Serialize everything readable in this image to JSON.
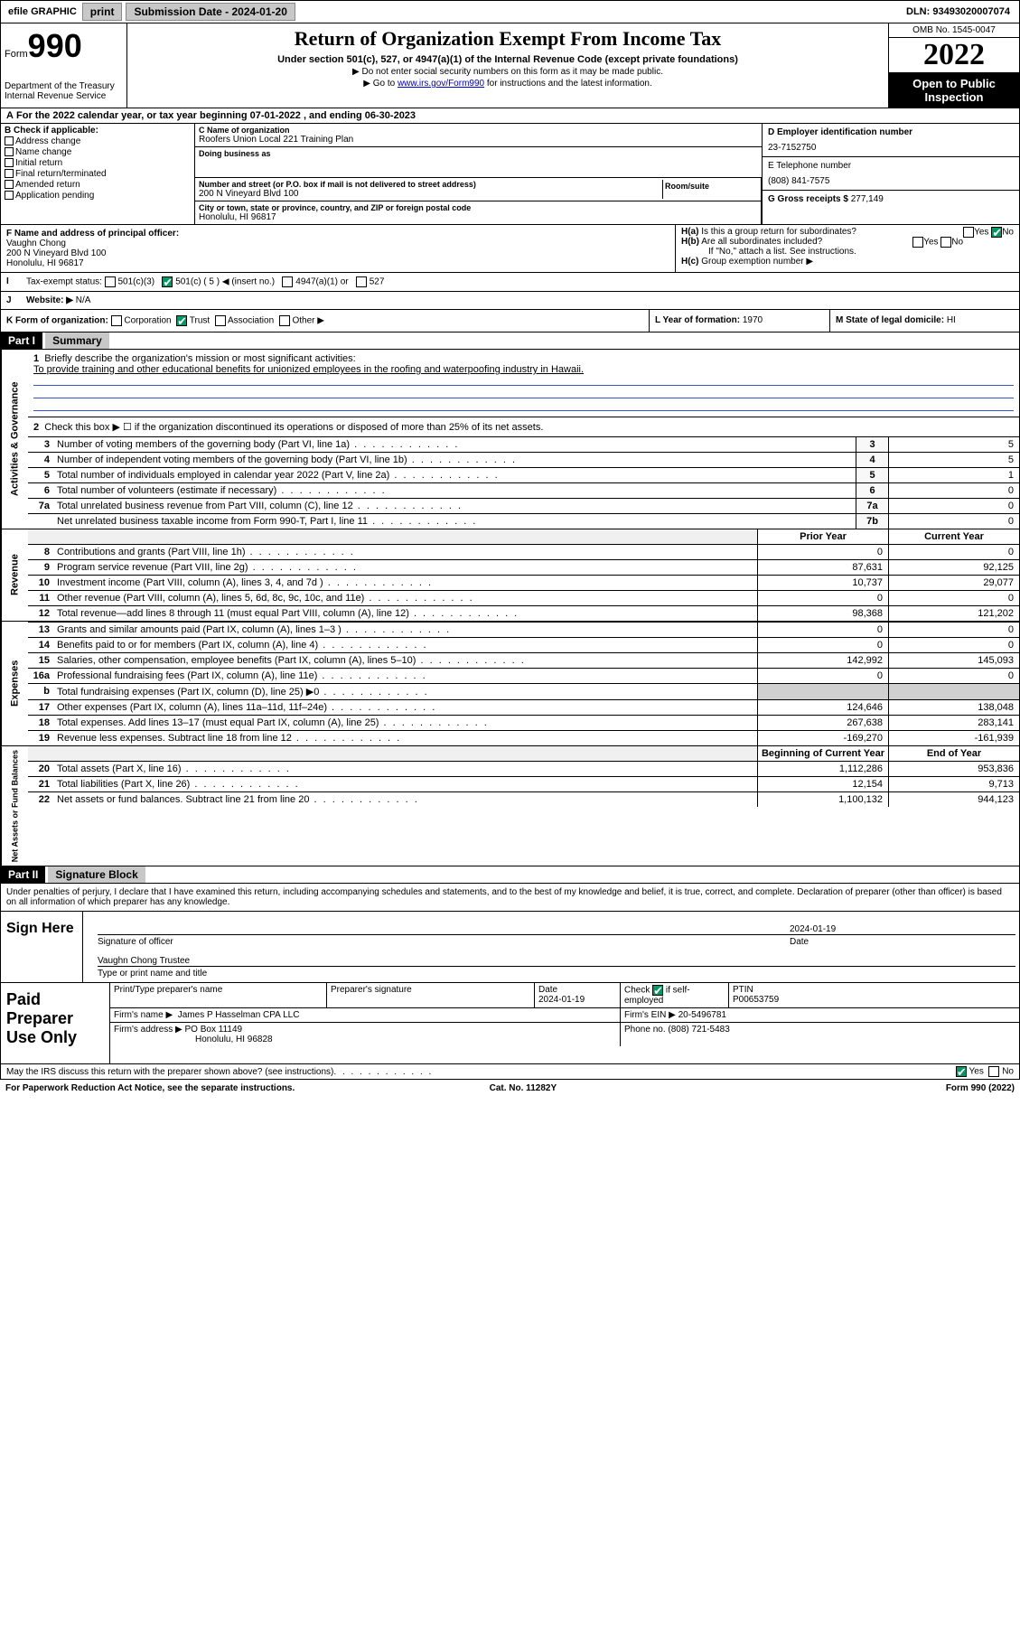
{
  "topbar": {
    "efile": "efile GRAPHIC",
    "print": "print",
    "submission_label": "Submission Date - 2024-01-20",
    "dln": "DLN: 93493020007074"
  },
  "header": {
    "form_prefix": "Form",
    "form_number": "990",
    "dept": "Department of the Treasury",
    "irs": "Internal Revenue Service",
    "title": "Return of Organization Exempt From Income Tax",
    "subtitle": "Under section 501(c), 527, or 4947(a)(1) of the Internal Revenue Code (except private foundations)",
    "note1": "▶ Do not enter social security numbers on this form as it may be made public.",
    "note2_pre": "▶ Go to ",
    "note2_link": "www.irs.gov/Form990",
    "note2_post": " for instructions and the latest information.",
    "omb": "OMB No. 1545-0047",
    "year": "2022",
    "open_public": "Open to Public Inspection"
  },
  "section_a": "For the 2022 calendar year, or tax year beginning 07-01-2022    , and ending 06-30-2023",
  "section_b": {
    "label": "B Check if applicable:",
    "items": [
      "Address change",
      "Name change",
      "Initial return",
      "Final return/terminated",
      "Amended return",
      "Application pending"
    ]
  },
  "section_c": {
    "name_lbl": "C Name of organization",
    "name": "Roofers Union Local 221 Training Plan",
    "dba_lbl": "Doing business as",
    "dba": "",
    "addr_lbl": "Number and street (or P.O. box if mail is not delivered to street address)",
    "room_lbl": "Room/suite",
    "addr": "200 N Vineyard Blvd 100",
    "city_lbl": "City or town, state or province, country, and ZIP or foreign postal code",
    "city": "Honolulu, HI  96817"
  },
  "section_d": {
    "ein_lbl": "D Employer identification number",
    "ein": "23-7152750",
    "phone_lbl": "E Telephone number",
    "phone": "(808) 841-7575",
    "gross_lbl": "G Gross receipts $",
    "gross": "277,149"
  },
  "section_f": {
    "lbl": "F Name and address of principal officer:",
    "name": "Vaughn Chong",
    "addr1": "200 N Vineyard Blvd 100",
    "addr2": "Honolulu, HI  96817"
  },
  "section_h": {
    "ha": "Is this a group return for subordinates?",
    "hb": "Are all subordinates included?",
    "hb_note": "If \"No,\" attach a list. See instructions.",
    "hc": "Group exemption number ▶",
    "yes": "Yes",
    "no": "No"
  },
  "section_i": {
    "lbl": "Tax-exempt status:",
    "opts": [
      "501(c)(3)",
      "501(c) ( 5 ) ◀ (insert no.)",
      "4947(a)(1) or",
      "527"
    ]
  },
  "section_j": {
    "lbl": "Website: ▶",
    "val": "N/A"
  },
  "section_k": {
    "lbl": "K Form of organization:",
    "opts": [
      "Corporation",
      "Trust",
      "Association",
      "Other ▶"
    ]
  },
  "section_l": {
    "lbl": "L Year of formation:",
    "val": "1970"
  },
  "section_m": {
    "lbl": "M State of legal domicile:",
    "val": "HI"
  },
  "part1": {
    "header": "Part I",
    "title": "Summary"
  },
  "summary": {
    "line1_lbl": "Briefly describe the organization's mission or most significant activities:",
    "line1_val": "To provide training and other educational benefits for unionized employees in the roofing and waterpoofing industry in Hawaii.",
    "line2": "Check this box ▶ ☐  if the organization discontinued its operations or disposed of more than 25% of its net assets.",
    "rows_single": [
      {
        "n": "3",
        "desc": "Number of voting members of the governing body (Part VI, line 1a)",
        "box": "3",
        "val": "5"
      },
      {
        "n": "4",
        "desc": "Number of independent voting members of the governing body (Part VI, line 1b)",
        "box": "4",
        "val": "5"
      },
      {
        "n": "5",
        "desc": "Total number of individuals employed in calendar year 2022 (Part V, line 2a)",
        "box": "5",
        "val": "1"
      },
      {
        "n": "6",
        "desc": "Total number of volunteers (estimate if necessary)",
        "box": "6",
        "val": "0"
      },
      {
        "n": "7a",
        "desc": "Total unrelated business revenue from Part VIII, column (C), line 12",
        "box": "7a",
        "val": "0"
      },
      {
        "n": "",
        "desc": "Net unrelated business taxable income from Form 990-T, Part I, line 11",
        "box": "7b",
        "val": "0"
      }
    ],
    "col_head_prior": "Prior Year",
    "col_head_current": "Current Year",
    "revenue_rows": [
      {
        "n": "8",
        "desc": "Contributions and grants (Part VIII, line 1h)",
        "p": "0",
        "c": "0"
      },
      {
        "n": "9",
        "desc": "Program service revenue (Part VIII, line 2g)",
        "p": "87,631",
        "c": "92,125"
      },
      {
        "n": "10",
        "desc": "Investment income (Part VIII, column (A), lines 3, 4, and 7d )",
        "p": "10,737",
        "c": "29,077"
      },
      {
        "n": "11",
        "desc": "Other revenue (Part VIII, column (A), lines 5, 6d, 8c, 9c, 10c, and 11e)",
        "p": "0",
        "c": "0"
      },
      {
        "n": "12",
        "desc": "Total revenue—add lines 8 through 11 (must equal Part VIII, column (A), line 12)",
        "p": "98,368",
        "c": "121,202"
      }
    ],
    "expense_rows": [
      {
        "n": "13",
        "desc": "Grants and similar amounts paid (Part IX, column (A), lines 1–3 )",
        "p": "0",
        "c": "0"
      },
      {
        "n": "14",
        "desc": "Benefits paid to or for members (Part IX, column (A), line 4)",
        "p": "0",
        "c": "0"
      },
      {
        "n": "15",
        "desc": "Salaries, other compensation, employee benefits (Part IX, column (A), lines 5–10)",
        "p": "142,992",
        "c": "145,093"
      },
      {
        "n": "16a",
        "desc": "Professional fundraising fees (Part IX, column (A), line 11e)",
        "p": "0",
        "c": "0"
      },
      {
        "n": "b",
        "desc": "Total fundraising expenses (Part IX, column (D), line 25) ▶0",
        "p": "",
        "c": ""
      },
      {
        "n": "17",
        "desc": "Other expenses (Part IX, column (A), lines 11a–11d, 11f–24e)",
        "p": "124,646",
        "c": "138,048"
      },
      {
        "n": "18",
        "desc": "Total expenses. Add lines 13–17 (must equal Part IX, column (A), line 25)",
        "p": "267,638",
        "c": "283,141"
      },
      {
        "n": "19",
        "desc": "Revenue less expenses. Subtract line 18 from line 12",
        "p": "-169,270",
        "c": "-161,939"
      }
    ],
    "col_head_begin": "Beginning of Current Year",
    "col_head_end": "End of Year",
    "balance_rows": [
      {
        "n": "20",
        "desc": "Total assets (Part X, line 16)",
        "p": "1,112,286",
        "c": "953,836"
      },
      {
        "n": "21",
        "desc": "Total liabilities (Part X, line 26)",
        "p": "12,154",
        "c": "9,713"
      },
      {
        "n": "22",
        "desc": "Net assets or fund balances. Subtract line 21 from line 20",
        "p": "1,100,132",
        "c": "944,123"
      }
    ]
  },
  "vert_labels": {
    "gov": "Activities & Governance",
    "rev": "Revenue",
    "exp": "Expenses",
    "net": "Net Assets or Fund Balances"
  },
  "part2": {
    "header": "Part II",
    "title": "Signature Block"
  },
  "penalties": "Under penalties of perjury, I declare that I have examined this return, including accompanying schedules and statements, and to the best of my knowledge and belief, it is true, correct, and complete. Declaration of preparer (other than officer) is based on all information of which preparer has any knowledge.",
  "sign": {
    "here": "Sign Here",
    "sig_officer": "Signature of officer",
    "date": "Date",
    "date_val": "2024-01-19",
    "name": "Vaughn Chong  Trustee",
    "name_lbl": "Type or print name and title"
  },
  "preparer": {
    "title": "Paid Preparer Use Only",
    "print_name_lbl": "Print/Type preparer's name",
    "sig_lbl": "Preparer's signature",
    "date_lbl": "Date",
    "date_val": "2024-01-19",
    "check_lbl": "Check ☑ if self-employed",
    "ptin_lbl": "PTIN",
    "ptin": "P00653759",
    "firm_name_lbl": "Firm's name    ▶",
    "firm_name": "James P Hasselman CPA LLC",
    "firm_ein_lbl": "Firm's EIN ▶",
    "firm_ein": "20-5496781",
    "firm_addr_lbl": "Firm's address ▶",
    "firm_addr1": "PO Box 11149",
    "firm_addr2": "Honolulu, HI  96828",
    "phone_lbl": "Phone no.",
    "phone": "(808) 721-5483"
  },
  "discuss": {
    "text": "May the IRS discuss this return with the preparer shown above? (see instructions)",
    "yes": "Yes",
    "no": "No"
  },
  "footer": {
    "left": "For Paperwork Reduction Act Notice, see the separate instructions.",
    "center": "Cat. No. 11282Y",
    "right": "Form 990 (2022)"
  },
  "colors": {
    "black": "#000000",
    "gray_btn": "#c8c8c8",
    "link": "#0000cc",
    "check_green": "#009966",
    "underline_blue": "#3355cc"
  }
}
